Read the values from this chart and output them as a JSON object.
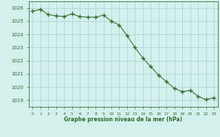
{
  "x": [
    0,
    1,
    2,
    3,
    4,
    5,
    6,
    7,
    8,
    9,
    10,
    11,
    12,
    13,
    14,
    15,
    16,
    17,
    18,
    19,
    20,
    21,
    22,
    23
  ],
  "y": [
    1025.75,
    1025.9,
    1025.5,
    1025.4,
    1025.35,
    1025.55,
    1025.35,
    1025.3,
    1025.3,
    1025.45,
    1025.0,
    1024.7,
    1023.9,
    1023.0,
    1022.2,
    1021.55,
    1020.9,
    1020.4,
    1019.9,
    1019.65,
    1019.75,
    1019.3,
    1019.05,
    1019.2
  ],
  "line_color": "#2d6a2d",
  "marker_color": "#2d6a2d",
  "bg_color": "#d4f0ec",
  "grid_color": "#a0d0c8",
  "tick_color": "#2d6a2d",
  "label_color": "#2d6a2d",
  "xlabel": "Graphe pression niveau de la mer (hPa)",
  "ylim_min": 1018.5,
  "ylim_max": 1026.5,
  "yticks": [
    1019,
    1020,
    1021,
    1022,
    1023,
    1024,
    1025,
    1026
  ],
  "xticks": [
    0,
    1,
    2,
    3,
    4,
    5,
    6,
    7,
    8,
    9,
    10,
    11,
    12,
    13,
    14,
    15,
    16,
    17,
    18,
    19,
    20,
    21,
    22,
    23
  ]
}
